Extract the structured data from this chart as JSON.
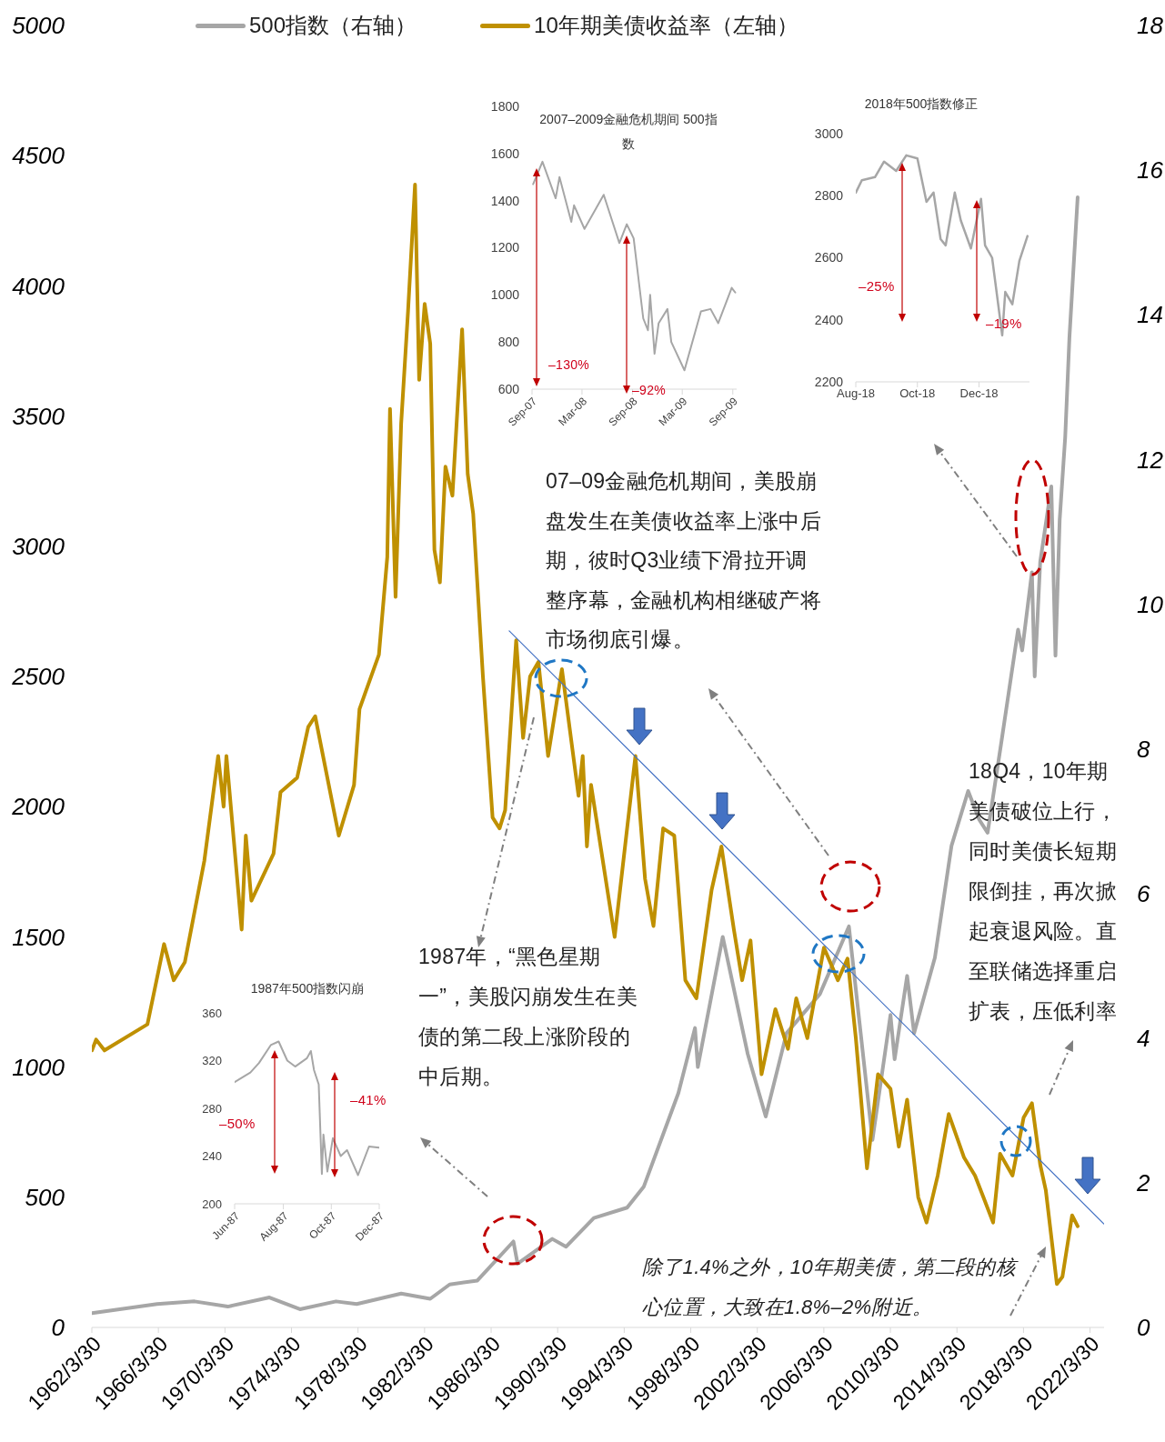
{
  "chart_data": [
    {
      "type": "line",
      "legend": "top",
      "xlim": [
        "1962-03-30",
        "2023-02-01"
      ],
      "xticks": [
        {
          "value": "1962-03-30",
          "label": "1962/3/30"
        },
        {
          "value": "1966-03-30",
          "label": "1966/3/30"
        },
        {
          "value": "1970-03-30",
          "label": "1970/3/30"
        },
        {
          "value": "1974-03-30",
          "label": "1974/3/30"
        },
        {
          "value": "1978-03-30",
          "label": "1978/3/30"
        },
        {
          "value": "1982-03-30",
          "label": "1982/3/30"
        },
        {
          "value": "1986-03-30",
          "label": "1986/3/30"
        },
        {
          "value": "1990-03-30",
          "label": "1990/3/30"
        },
        {
          "value": "1994-03-30",
          "label": "1994/3/30"
        },
        {
          "value": "1998-03-30",
          "label": "1998/3/30"
        },
        {
          "value": "2002-03-30",
          "label": "2002/3/30"
        },
        {
          "value": "2006-03-30",
          "label": "2006/3/30"
        },
        {
          "value": "2010-03-30",
          "label": "2010/3/30"
        },
        {
          "value": "2014-03-30",
          "label": "2014/3/30"
        },
        {
          "value": "2018-03-30",
          "label": "2018/3/30"
        },
        {
          "value": "2022-03-30",
          "label": "2022/3/30"
        }
      ],
      "ylim": [
        0,
        5000
      ],
      "yticks": [
        0,
        500,
        1000,
        1500,
        2000,
        2500,
        3000,
        3500,
        4000,
        4500,
        5000
      ],
      "y2lim": [
        0,
        18
      ],
      "y2ticks": [
        0,
        2,
        4,
        6,
        8,
        10,
        12,
        14,
        16,
        18
      ],
      "series": [
        {
          "name": "500指数（右轴）",
          "color": "#a6a6a6",
          "x": [
            "1962-04",
            "1966-03",
            "1968-06",
            "1970-06",
            "1972-12",
            "1974-10",
            "1976-12",
            "1978-03",
            "1980-11",
            "1982-08",
            "1983-10",
            "1985-06",
            "1987-08",
            "1987-11",
            "1989-12",
            "1990-10",
            "1992-06",
            "1994-06",
            "1995-06",
            "1997-07",
            "1998-07",
            "1998-09",
            "2000-03",
            "2001-09",
            "2002-10",
            "2004-01",
            "2006-01",
            "2007-10",
            "2009-03",
            "2010-04",
            "2010-07",
            "2011-04",
            "2011-09",
            "2012-12",
            "2013-12",
            "2014-12",
            "2015-08",
            "2016-02",
            "2016-12",
            "2017-12",
            "2018-03",
            "2018-10",
            "2018-12",
            "2019-04",
            "2019-12",
            "2020-03",
            "2020-06",
            "2020-10",
            "2021-01",
            "2021-07"
          ],
          "values": [
            55,
            90,
            100,
            80,
            115,
            70,
            100,
            90,
            130,
            110,
            165,
            180,
            330,
            245,
            340,
            310,
            420,
            460,
            540,
            900,
            1150,
            1000,
            1500,
            1050,
            810,
            1130,
            1280,
            1540,
            720,
            1200,
            1030,
            1350,
            1130,
            1420,
            1850,
            2060,
            1950,
            1900,
            2250,
            2680,
            2600,
            2900,
            2500,
            2940,
            3230,
            2580,
            3100,
            3420,
            3800,
            4340
          ]
        },
        {
          "name": "10年期美债收益率（左轴）",
          "color": "#bf9000",
          "axis": "y2",
          "x": [
            "1962-04",
            "1962-07",
            "1963-01",
            "1965-08",
            "1966-08",
            "1967-03",
            "1967-11",
            "1969-01",
            "1969-11",
            "1970-03",
            "1970-05",
            "1971-04",
            "1971-07",
            "1971-11",
            "1973-03",
            "1973-08",
            "1974-08",
            "1975-04",
            "1975-09",
            "1977-02",
            "1978-01",
            "1978-05",
            "1979-07",
            "1980-01",
            "1980-03",
            "1980-07",
            "1980-11",
            "1981-04",
            "1981-09",
            "1981-12",
            "1982-04",
            "1982-08",
            "1982-11",
            "1983-03",
            "1983-07",
            "1983-12",
            "1984-07",
            "1984-11",
            "1985-03",
            "1985-10",
            "1986-05",
            "1986-10",
            "1987-02",
            "1987-10",
            "1988-03",
            "1988-08",
            "1989-02",
            "1989-09",
            "1990-07",
            "1991-07",
            "1991-10",
            "1992-01",
            "1992-04",
            "1993-09",
            "1994-12",
            "1995-07",
            "1996-01",
            "1996-08",
            "1997-04",
            "1997-12",
            "1998-08",
            "1999-07",
            "2000-02",
            "2000-11",
            "2001-05",
            "2001-11",
            "2002-07",
            "2003-05",
            "2004-02",
            "2004-08",
            "2005-04",
            "2006-04",
            "2007-02",
            "2007-09",
            "2008-03",
            "2008-11",
            "2009-07",
            "2010-04",
            "2010-10",
            "2011-04",
            "2011-12",
            "2012-06",
            "2013-02",
            "2013-10",
            "2014-09",
            "2015-05",
            "2015-11",
            "2016-06",
            "2016-11",
            "2017-08",
            "2018-04",
            "2018-10",
            "2019-04",
            "2019-08",
            "2020-04",
            "2020-08",
            "2021-03",
            "2021-07"
          ],
          "values": [
            3.83,
            3.98,
            3.83,
            4.19,
            5.3,
            4.8,
            5.05,
            6.45,
            7.9,
            7.2,
            7.9,
            5.5,
            6.8,
            5.9,
            6.55,
            7.4,
            7.6,
            8.3,
            8.45,
            6.8,
            7.5,
            8.55,
            9.3,
            10.65,
            12.7,
            10.1,
            12.5,
            14.05,
            15.8,
            13.1,
            14.15,
            13.6,
            10.75,
            10.3,
            11.9,
            11.5,
            13.8,
            11.8,
            11.25,
            9.0,
            7.05,
            6.9,
            7.15,
            9.5,
            8.15,
            9.0,
            9.2,
            7.9,
            9.1,
            7.35,
            7.9,
            6.65,
            7.5,
            5.4,
            7.9,
            6.2,
            5.55,
            6.9,
            6.8,
            4.8,
            4.55,
            6.05,
            6.65,
            5.5,
            4.8,
            5.35,
            3.5,
            4.4,
            3.85,
            4.55,
            4.0,
            5.25,
            4.8,
            5.1,
            4.0,
            2.2,
            3.5,
            3.3,
            2.5,
            3.15,
            1.8,
            1.45,
            2.1,
            2.95,
            2.35,
            2.1,
            1.8,
            1.45,
            2.4,
            2.1,
            2.9,
            3.1,
            2.25,
            1.9,
            0.6,
            0.7,
            1.55,
            1.4
          ]
        },
        {
          "type": "line",
          "color": "#4472c4",
          "axis": "y2",
          "x": [
            "1987-05",
            "2023-02"
          ],
          "values": [
            9.63,
            1.43
          ]
        }
      ],
      "annotations": [
        "07–09金融危机期间，美股崩盘发生在美债收益率上涨中后期，彼时Q3业绩下滑拉开调整序幕，金融机构相继破产将市场彻底引爆。",
        "1987年，“黑色星期一”，美股闪崩发生在美债的第二段上涨阶段的中后期。",
        "18Q4，10年期美债破位上行，同时美债长短期限倒挂，再次掀起衰退风险。直至联储选择重启扩表，压低利率",
        "除了1.4%之外，10年期美债，第二段的核心位置，大致在1.8%–2%附近。"
      ]
    },
    {
      "type": "line",
      "title": "2007–2009金融危机期间 500指数",
      "xlim": [
        "2007-09-01",
        "2009-09-15"
      ],
      "xticks": [
        {
          "value": "2007-09-01",
          "label": "Sep-07"
        },
        {
          "value": "2008-03-01",
          "label": "Mar-08"
        },
        {
          "value": "2008-09-01",
          "label": "Sep-08"
        },
        {
          "value": "2009-03-01",
          "label": "Mar-09"
        },
        {
          "value": "2009-09-01",
          "label": "Sep-09"
        }
      ],
      "ylim": [
        600,
        1800
      ],
      "yticks": [
        600,
        800,
        1000,
        1200,
        1400,
        1600,
        1800
      ],
      "x": [
        "2007-09-05",
        "2007-10-09",
        "2007-11-26",
        "2007-12-10",
        "2008-01-22",
        "2008-02-01",
        "2008-03-10",
        "2008-05-19",
        "2008-07-15",
        "2008-08-11",
        "2008-09-05",
        "2008-10-10",
        "2008-10-27",
        "2008-11-04",
        "2008-11-20",
        "2008-12-05",
        "2009-01-06",
        "2009-01-20",
        "2009-03-09",
        "2009-05-08",
        "2009-06-12",
        "2009-07-10",
        "2009-08-28",
        "2009-09-10"
      ],
      "series": [
        {
          "color": "#a6a6a6",
          "values": [
            1470,
            1565,
            1410,
            1500,
            1310,
            1380,
            1280,
            1425,
            1220,
            1300,
            1240,
            900,
            850,
            1000,
            750,
            880,
            940,
            800,
            680,
            930,
            940,
            880,
            1030,
            1010
          ]
        }
      ],
      "annotations": [
        "–130%",
        "–92%"
      ]
    },
    {
      "type": "line",
      "title": "2018年500指数修正",
      "xlim": [
        "2018-08-01",
        "2019-01-20"
      ],
      "xticks": [
        {
          "value": "2018-08-01",
          "label": "Aug-18"
        },
        {
          "value": "2018-10-01",
          "label": "Oct-18"
        },
        {
          "value": "2018-12-01",
          "label": "Dec-18"
        }
      ],
      "ylim": [
        2200,
        3000
      ],
      "yticks": [
        2200,
        2400,
        2600,
        2800,
        3000
      ],
      "x": [
        "2018-08-01",
        "2018-08-07",
        "2018-08-20",
        "2018-08-29",
        "2018-09-10",
        "2018-09-20",
        "2018-10-01",
        "2018-10-10",
        "2018-10-17",
        "2018-10-24",
        "2018-10-29",
        "2018-11-07",
        "2018-11-13",
        "2018-11-23",
        "2018-12-03",
        "2018-12-07",
        "2018-12-14",
        "2018-12-24",
        "2018-12-27",
        "2019-01-03",
        "2019-01-10",
        "2019-01-18"
      ],
      "series": [
        {
          "color": "#a6a6a6",
          "values": [
            2810,
            2850,
            2860,
            2910,
            2880,
            2930,
            2920,
            2780,
            2810,
            2660,
            2640,
            2810,
            2720,
            2630,
            2790,
            2640,
            2600,
            2350,
            2490,
            2450,
            2590,
            2670
          ]
        }
      ],
      "annotations": [
        "–25%",
        "–19%"
      ]
    },
    {
      "type": "line",
      "title": "1987年500指数闪崩",
      "xlim": [
        "1987-06-30",
        "1987-12-31"
      ],
      "xticks": [
        {
          "value": "1987-06-30",
          "label": "Jun-87"
        },
        {
          "value": "1987-08-31",
          "label": "Aug-87"
        },
        {
          "value": "1987-10-31",
          "label": "Oct-87"
        },
        {
          "value": "1987-12-31",
          "label": "Dec-87"
        }
      ],
      "ylim": [
        200,
        360
      ],
      "yticks": [
        200,
        240,
        280,
        320,
        360
      ],
      "x": [
        "1987-06-30",
        "1987-07-10",
        "1987-07-20",
        "1987-07-31",
        "1987-08-15",
        "1987-08-25",
        "1987-09-05",
        "1987-09-15",
        "1987-09-30",
        "1987-10-05",
        "1987-10-09",
        "1987-10-15",
        "1987-10-19",
        "1987-10-21",
        "1987-10-26",
        "1987-11-02",
        "1987-11-12",
        "1987-11-20",
        "1987-12-04",
        "1987-12-18",
        "1987-12-31"
      ],
      "series": [
        {
          "color": "#a6a6a6",
          "values": [
            302,
            306,
            310,
            318,
            333,
            336,
            320,
            315,
            322,
            328,
            312,
            300,
            225,
            258,
            227,
            255,
            240,
            245,
            224,
            248,
            247
          ]
        }
      ],
      "annotations": [
        "–50%",
        "–41%"
      ]
    }
  ]
}
